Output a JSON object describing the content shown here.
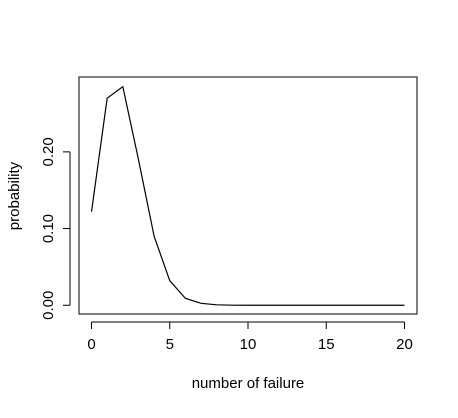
{
  "chart_data": {
    "type": "line",
    "title": "",
    "xlabel": "number of failure",
    "ylabel": "probability",
    "xlim": [
      -0.8,
      20.8
    ],
    "ylim": [
      -0.0114,
      0.2976
    ],
    "x_ticks": [
      0,
      5,
      10,
      15,
      20
    ],
    "x_tick_labels": [
      "0",
      "5",
      "10",
      "15",
      "20"
    ],
    "y_ticks": [
      0.0,
      0.1,
      0.2
    ],
    "y_tick_labels": [
      "0.00",
      "0.10",
      "0.20"
    ],
    "grid": false,
    "legend": "none",
    "line_color": "#000000",
    "series": [
      {
        "x": [
          0,
          1,
          2,
          3,
          4,
          5,
          6,
          7,
          8,
          9,
          10,
          11,
          12,
          13,
          14,
          15,
          16,
          17,
          18,
          19,
          20
        ],
        "values": [
          0.122,
          0.27,
          0.285,
          0.19,
          0.09,
          0.032,
          0.009,
          0.0025,
          0.0006,
          0.0001,
          0.0,
          0.0,
          0.0,
          0.0,
          0.0,
          0.0,
          0.0,
          0.0,
          0.0,
          0.0,
          0.0
        ]
      }
    ]
  }
}
